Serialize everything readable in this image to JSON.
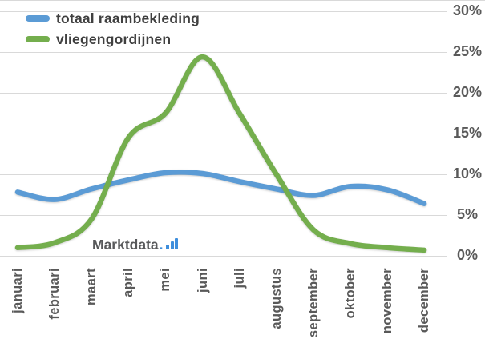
{
  "chart_data": {
    "type": "line",
    "title": "",
    "categories": [
      "januari",
      "februari",
      "maart",
      "april",
      "mei",
      "juni",
      "juli",
      "augustus",
      "september",
      "oktober",
      "november",
      "december"
    ],
    "series": [
      {
        "name": "totaal raambekleding",
        "color": "#5B9BD5",
        "values": [
          7.8,
          6.9,
          8.2,
          9.3,
          10.2,
          10.1,
          9.1,
          8.2,
          7.4,
          8.5,
          8.1,
          6.4
        ]
      },
      {
        "name": "vliegengordijnen",
        "color": "#74AE4D",
        "values": [
          1.0,
          1.6,
          4.5,
          14.5,
          17.5,
          24.4,
          17.5,
          10.0,
          3.2,
          1.5,
          1.0,
          0.7
        ]
      }
    ],
    "xlabel": "",
    "ylabel": "",
    "ylim": [
      0,
      30
    ],
    "y_tick_step": 5,
    "y_tick_labels": [
      "0%",
      "5%",
      "10%",
      "15%",
      "20%",
      "25%",
      "30%"
    ],
    "y_axis_side": "right",
    "x_labels_rotation_deg": -90,
    "grid": true,
    "legend_position": "top-left",
    "line_style": "smooth"
  },
  "legend": {
    "items": [
      {
        "label": "totaal raambekleding",
        "color": "#5B9BD5"
      },
      {
        "label": "vliegengordijnen",
        "color": "#74AE4D"
      }
    ]
  },
  "watermark": {
    "text": "Marktdata",
    "dot": ".",
    "icon": "bar-chart-icon",
    "text_color": "#58595B",
    "icon_color": "#3E8EDC"
  },
  "colors": {
    "background": "#FFFFFF",
    "gridline": "#D9D9D9",
    "axis_text": "#595959",
    "legend_text": "#404040"
  }
}
